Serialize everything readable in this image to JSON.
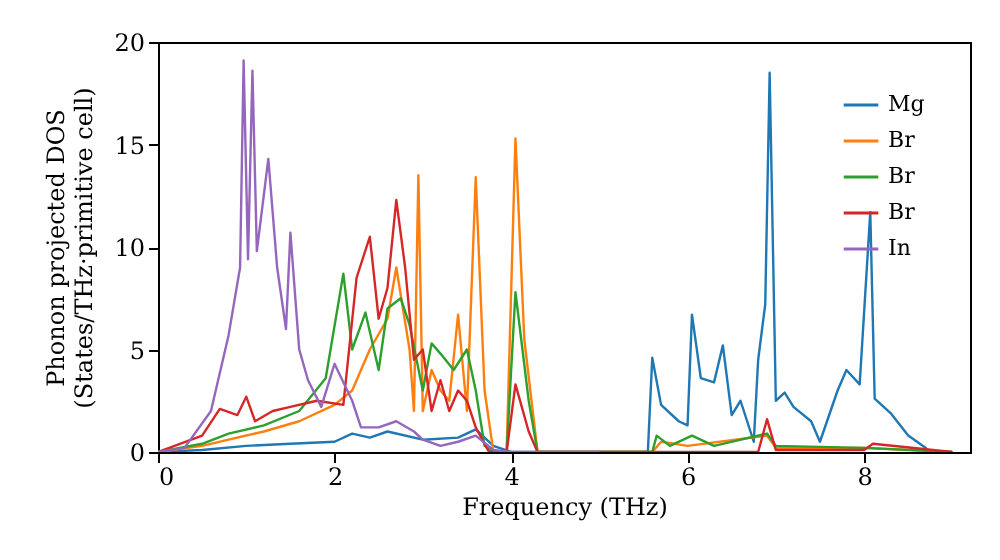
{
  "chart_data": {
    "type": "line",
    "xlabel": "Frequency (THz)",
    "ylabel": "Phonon projected DOS\n(States/THz·primitive cell)",
    "xlim": [
      0,
      9.2
    ],
    "xticks": [
      0,
      2,
      4,
      6,
      8
    ],
    "ylim": [
      0,
      20
    ],
    "yticks": [
      0,
      5,
      10,
      15,
      20
    ],
    "legend": "top right",
    "grid": false,
    "series": [
      {
        "name": "Mg",
        "color": "#1f77b4",
        "x": [
          0,
          0.5,
          1,
          1.5,
          2,
          2.2,
          2.4,
          2.6,
          3,
          3.4,
          3.6,
          3.8,
          4,
          5.55,
          5.6,
          5.7,
          5.9,
          6.0,
          6.05,
          6.15,
          6.3,
          6.4,
          6.5,
          6.6,
          6.75,
          6.8,
          6.88,
          6.93,
          7.0,
          7.1,
          7.2,
          7.4,
          7.5,
          7.7,
          7.8,
          7.95,
          8.07,
          8.12,
          8.3,
          8.5,
          8.7,
          8.72
        ],
        "values": [
          0,
          0.1,
          0.3,
          0.4,
          0.5,
          0.9,
          0.7,
          1.0,
          0.6,
          0.7,
          1.1,
          0.3,
          0,
          0,
          4.6,
          2.3,
          1.5,
          1.3,
          6.7,
          3.6,
          3.4,
          5.2,
          1.8,
          2.5,
          0.5,
          4.5,
          7.2,
          18.5,
          2.5,
          2.9,
          2.2,
          1.5,
          0.5,
          3.0,
          4.0,
          3.3,
          11.7,
          2.6,
          1.9,
          0.8,
          0.2,
          0
        ]
      },
      {
        "name": "Br",
        "color": "#ff7f0e",
        "x": [
          0,
          0.5,
          0.8,
          1.2,
          1.6,
          2.0,
          2.2,
          2.4,
          2.6,
          2.7,
          2.85,
          2.9,
          2.95,
          3.0,
          3.1,
          3.2,
          3.3,
          3.4,
          3.5,
          3.6,
          3.7,
          3.8,
          3.95,
          4.05,
          4.15,
          4.3,
          5.6,
          5.7,
          6.0,
          6.9,
          7.0,
          8.0,
          9.0
        ],
        "values": [
          0,
          0.3,
          0.6,
          1.0,
          1.5,
          2.3,
          3.0,
          5.0,
          6.5,
          9.0,
          5.0,
          2.0,
          13.5,
          2.0,
          4.0,
          3.0,
          2.5,
          6.7,
          2.0,
          13.4,
          3.0,
          0,
          0,
          15.3,
          5.5,
          0,
          0,
          0.5,
          0.3,
          0.8,
          0.2,
          0.2,
          0
        ]
      },
      {
        "name": "Br",
        "color": "#2ca02c",
        "x": [
          0,
          0.5,
          0.8,
          1.2,
          1.6,
          1.9,
          2.1,
          2.2,
          2.35,
          2.5,
          2.6,
          2.75,
          2.85,
          3.0,
          3.1,
          3.2,
          3.35,
          3.5,
          3.6,
          3.7,
          3.8,
          3.95,
          4.05,
          4.2,
          4.3,
          5.6,
          5.65,
          5.8,
          6.05,
          6.3,
          6.9,
          7.0,
          8.0,
          9.0
        ],
        "values": [
          0,
          0.4,
          0.9,
          1.3,
          2.0,
          3.6,
          8.7,
          5.0,
          6.8,
          4.0,
          7.0,
          7.5,
          6.2,
          3.0,
          5.3,
          4.8,
          4.0,
          5.0,
          3.0,
          0.3,
          0,
          0,
          7.8,
          2.5,
          0,
          0,
          0.8,
          0.3,
          0.8,
          0.3,
          0.9,
          0.3,
          0.2,
          0
        ]
      },
      {
        "name": "Br",
        "color": "#d62728",
        "x": [
          0,
          0.5,
          0.7,
          0.9,
          1.0,
          1.1,
          1.3,
          1.5,
          1.8,
          2.1,
          2.25,
          2.4,
          2.5,
          2.6,
          2.7,
          2.8,
          2.9,
          3.0,
          3.1,
          3.2,
          3.3,
          3.4,
          3.5,
          3.6,
          3.75,
          3.95,
          4.05,
          4.2,
          4.3,
          6.8,
          6.9,
          7.0,
          8.0,
          8.1,
          9.0
        ],
        "values": [
          0,
          0.8,
          2.1,
          1.8,
          2.7,
          1.5,
          2.0,
          2.2,
          2.5,
          2.3,
          8.5,
          10.5,
          6.5,
          8.0,
          12.3,
          9.0,
          4.5,
          5.0,
          2.0,
          3.5,
          2.0,
          3.0,
          2.5,
          1.2,
          0,
          0,
          3.3,
          1.0,
          0,
          0,
          1.6,
          0.1,
          0.1,
          0.4,
          0
        ]
      },
      {
        "name": "In",
        "color": "#9467bd",
        "x": [
          0,
          0.3,
          0.6,
          0.8,
          0.93,
          0.97,
          1.02,
          1.07,
          1.12,
          1.25,
          1.35,
          1.45,
          1.5,
          1.6,
          1.7,
          1.85,
          2.0,
          2.2,
          2.3,
          2.5,
          2.7,
          2.9,
          3.0,
          3.2,
          3.4,
          3.6,
          3.8,
          4.0,
          5.0
        ],
        "values": [
          0,
          0.2,
          2.0,
          5.7,
          9.0,
          19.1,
          9.4,
          18.6,
          9.8,
          14.3,
          9.0,
          6.0,
          10.7,
          5.0,
          3.5,
          2.2,
          4.3,
          2.5,
          1.2,
          1.2,
          1.5,
          1.0,
          0.6,
          0.3,
          0.5,
          0.8,
          0.1,
          0,
          0
        ]
      }
    ]
  }
}
